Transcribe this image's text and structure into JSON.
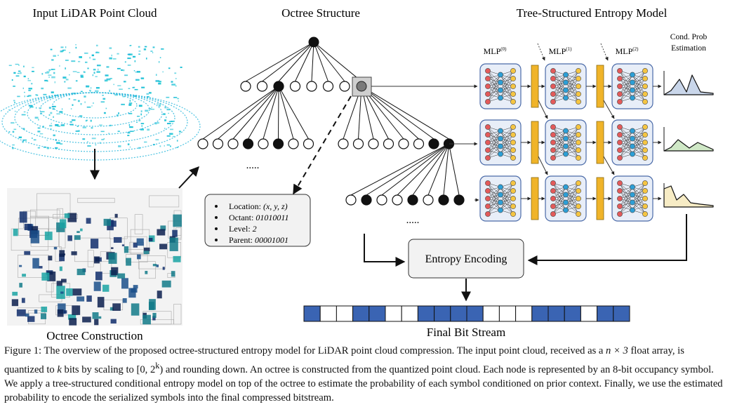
{
  "figure": {
    "titles": {
      "input": "Input LiDAR Point Cloud",
      "octree_structure": "Octree Structure",
      "entropy_model": "Tree-Structured Entropy Model",
      "octree_construction": "Octree Construction",
      "final_bit_stream": "Final Bit Stream"
    },
    "mlp_labels": [
      "MLP",
      "MLP",
      "MLP"
    ],
    "mlp_superscripts": [
      "(0)",
      "(1)",
      "(2)"
    ],
    "cond_prob": [
      "Cond. Prob",
      "Estimation"
    ],
    "ellipsis": ".....",
    "info_box": [
      {
        "key": "Location: ",
        "value": "(x, y, z)"
      },
      {
        "key": "Octant: ",
        "value": "01010011"
      },
      {
        "key": "Level: ",
        "value": "2"
      },
      {
        "key": "Parent: ",
        "value": "00001001"
      }
    ],
    "entropy_encoding": "Entropy Encoding",
    "bitstream": [
      1,
      0,
      0,
      1,
      1,
      0,
      0,
      1,
      1,
      1,
      1,
      0,
      0,
      0,
      1,
      1,
      1,
      0,
      1,
      1
    ],
    "colors": {
      "blue": "#3a64b3",
      "mlp_bar": "#f0b429",
      "node_red": "#e35a5a",
      "node_yellow": "#f5c542",
      "node_blue": "#2d9fd6",
      "curve1": "#c9d6ea",
      "curve2": "#cfe8c6",
      "curve3": "#f7ecc5"
    }
  },
  "caption": {
    "label": "Figure 1: ",
    "t1": "The overview of the proposed octree-structured entropy model for LiDAR point cloud compression. The input point cloud, received as a ",
    "m1": "n × 3",
    "t2": " float array, is quantized to ",
    "m2": "k",
    "t3": " bits by scaling to ",
    "m3": "[0, 2",
    "m3sup": "k",
    "m3end": ")",
    "t4": " and rounding down. An octree is constructed from the quantized point cloud. Each node is represented by an 8-bit occupancy symbol. We apply a tree-structured conditional entropy model on top of the octree to estimate the probability of each symbol conditioned on prior context. Finally, we use the estimated probability to encode the serialized symbols into the final compressed bitstream."
  }
}
